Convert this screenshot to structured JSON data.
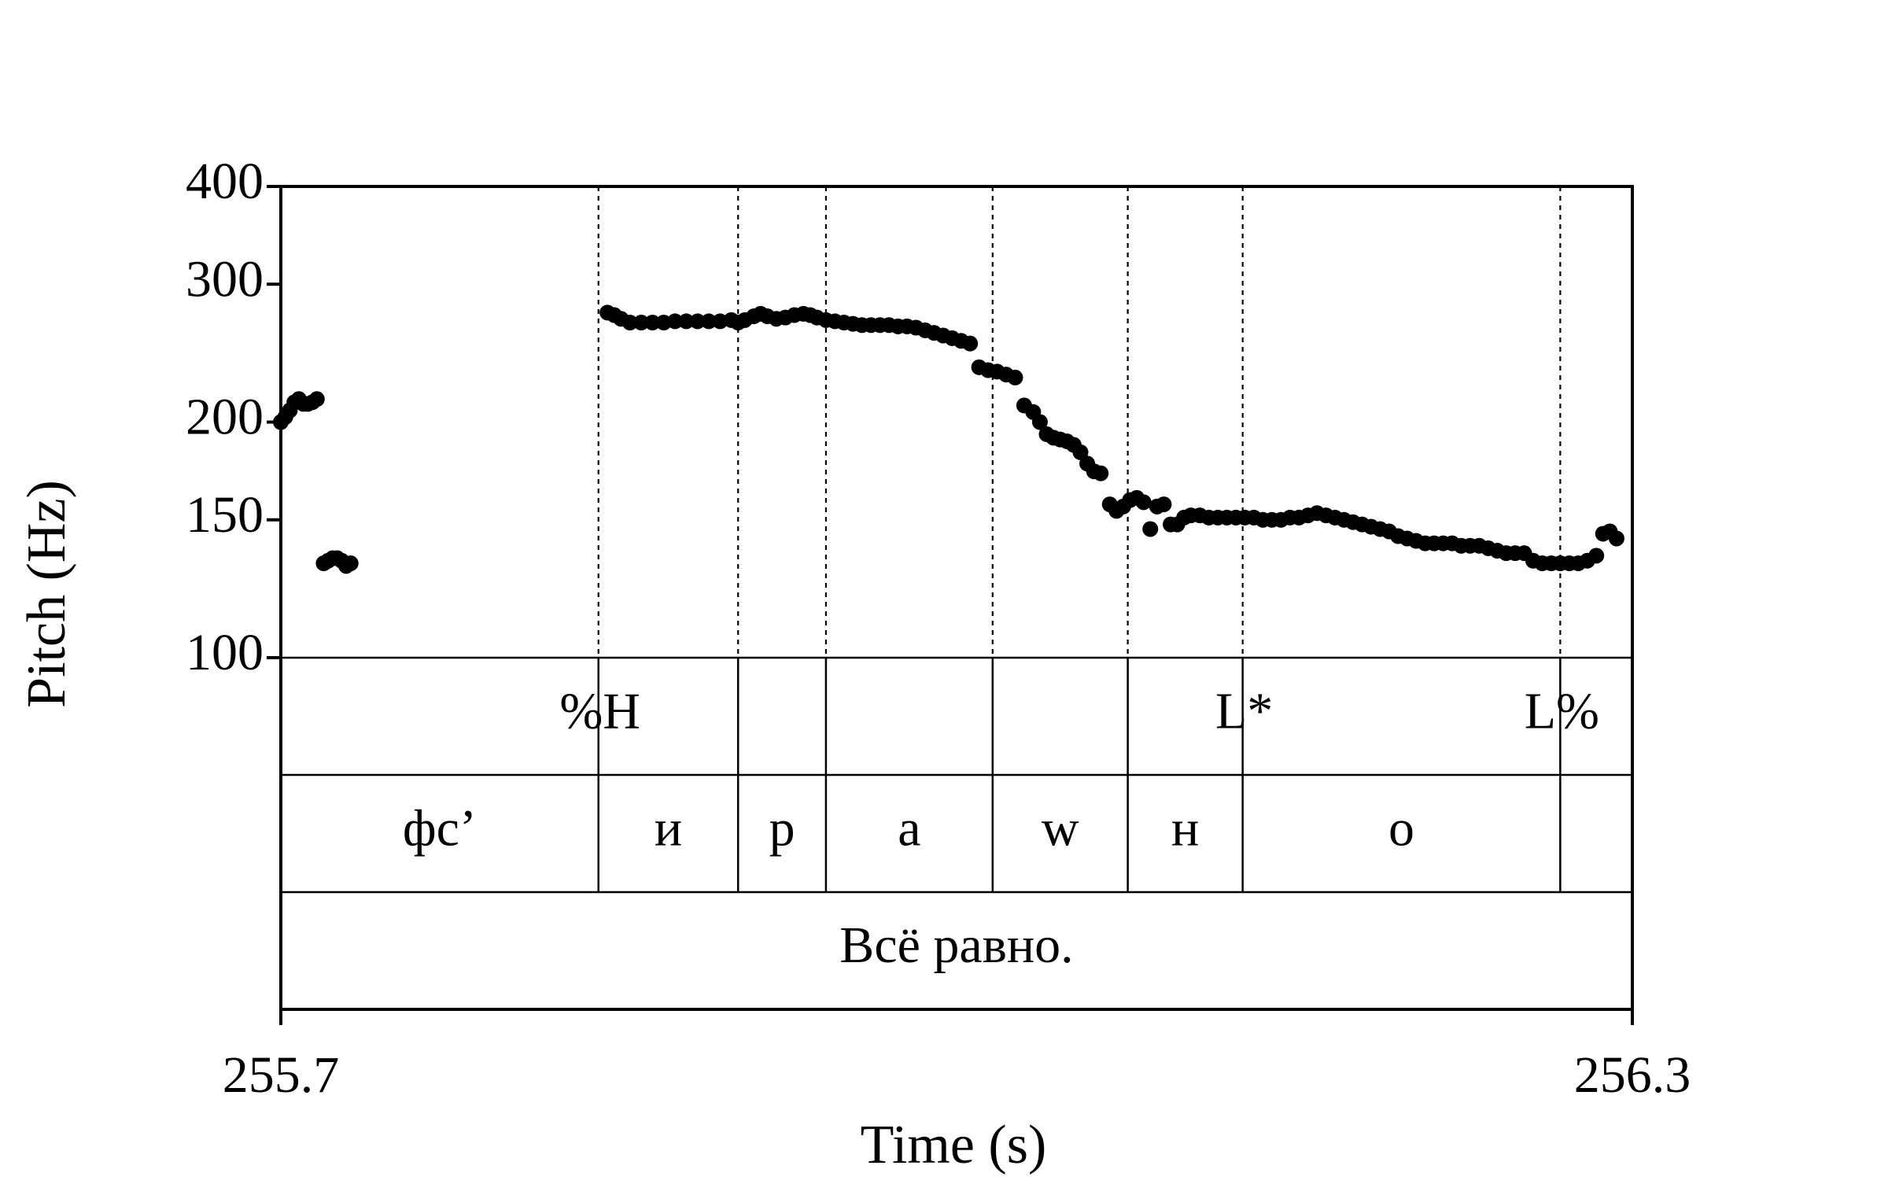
{
  "chart_data": {
    "type": "scatter",
    "xlabel": "Time (s)",
    "ylabel": "Pitch (Hz)",
    "xlim": [
      255.7,
      256.3
    ],
    "ylim": [
      100,
      400
    ],
    "y_scale": "log",
    "xticks": [
      "255.7",
      "256.3"
    ],
    "yticks": [
      {
        "value": 100,
        "label": "100"
      },
      {
        "value": 150,
        "label": "150"
      },
      {
        "value": 200,
        "label": "200"
      },
      {
        "value": 300,
        "label": "300"
      },
      {
        "value": 400,
        "label": "400"
      }
    ],
    "boundaries": [
      255.841,
      255.903,
      255.942,
      256.016,
      256.076,
      256.127,
      256.268
    ],
    "tones": [
      {
        "time": 255.841,
        "label": "%H"
      },
      {
        "time": 256.127,
        "label": "L*"
      },
      {
        "time": 256.268,
        "label": "L%"
      }
    ],
    "segments": [
      {
        "start": 255.7,
        "end": 255.841,
        "label": "фс’"
      },
      {
        "start": 255.841,
        "end": 255.903,
        "label": "и"
      },
      {
        "start": 255.903,
        "end": 255.942,
        "label": "р"
      },
      {
        "start": 255.942,
        "end": 256.016,
        "label": "а"
      },
      {
        "start": 256.016,
        "end": 256.076,
        "label": "w"
      },
      {
        "start": 256.076,
        "end": 256.127,
        "label": "н"
      },
      {
        "start": 256.127,
        "end": 256.268,
        "label": "о"
      },
      {
        "start": 256.268,
        "end": 256.3,
        "label": ""
      }
    ],
    "sentence": {
      "start": 255.7,
      "end": 256.3,
      "label": "Всё равно."
    },
    "series": [
      {
        "values": [
          [
            255.7,
            200
          ],
          [
            255.702,
            203
          ],
          [
            255.704,
            207
          ],
          [
            255.706,
            212
          ],
          [
            255.708,
            214
          ],
          [
            255.71,
            211
          ],
          [
            255.712,
            211
          ],
          [
            255.714,
            212
          ],
          [
            255.716,
            214
          ],
          [
            255.719,
            132
          ],
          [
            255.721,
            133
          ],
          [
            255.723,
            134
          ],
          [
            255.725,
            134
          ],
          [
            255.727,
            133
          ],
          [
            255.729,
            131
          ],
          [
            255.731,
            132
          ],
          [
            255.845,
            276
          ],
          [
            255.848,
            274
          ],
          [
            255.851,
            271
          ],
          [
            255.855,
            268
          ],
          [
            255.86,
            268
          ],
          [
            255.865,
            268
          ],
          [
            255.87,
            268
          ],
          [
            255.875,
            269
          ],
          [
            255.88,
            269
          ],
          [
            255.885,
            269
          ],
          [
            255.89,
            269
          ],
          [
            255.895,
            269
          ],
          [
            255.9,
            270
          ],
          [
            255.903,
            268
          ],
          [
            255.906,
            270
          ],
          [
            255.91,
            273
          ],
          [
            255.913,
            275
          ],
          [
            255.916,
            273
          ],
          [
            255.92,
            271
          ],
          [
            255.924,
            272
          ],
          [
            255.928,
            274
          ],
          [
            255.932,
            275
          ],
          [
            255.935,
            274
          ],
          [
            255.938,
            272
          ],
          [
            255.942,
            270
          ],
          [
            255.946,
            269
          ],
          [
            255.95,
            268
          ],
          [
            255.954,
            267
          ],
          [
            255.958,
            266
          ],
          [
            255.962,
            266
          ],
          [
            255.966,
            266
          ],
          [
            255.97,
            266
          ],
          [
            255.974,
            265
          ],
          [
            255.978,
            265
          ],
          [
            255.982,
            264
          ],
          [
            255.986,
            262
          ],
          [
            255.99,
            260
          ],
          [
            255.994,
            258
          ],
          [
            255.998,
            256
          ],
          [
            256.002,
            254
          ],
          [
            256.006,
            252
          ],
          [
            256.01,
            235
          ],
          [
            256.014,
            233
          ],
          [
            256.018,
            232
          ],
          [
            256.022,
            230
          ],
          [
            256.026,
            228
          ],
          [
            256.03,
            210
          ],
          [
            256.034,
            206
          ],
          [
            256.037,
            200
          ],
          [
            256.04,
            193
          ],
          [
            256.043,
            191
          ],
          [
            256.046,
            190
          ],
          [
            256.049,
            189
          ],
          [
            256.052,
            187
          ],
          [
            256.055,
            183
          ],
          [
            256.058,
            177
          ],
          [
            256.061,
            173
          ],
          [
            256.064,
            172
          ],
          [
            256.068,
            157
          ],
          [
            256.071,
            154
          ],
          [
            256.074,
            156
          ],
          [
            256.077,
            159
          ],
          [
            256.08,
            160
          ],
          [
            256.083,
            158
          ],
          [
            256.086,
            146
          ],
          [
            256.089,
            156
          ],
          [
            256.092,
            157
          ],
          [
            256.095,
            148
          ],
          [
            256.098,
            148
          ],
          [
            256.101,
            151
          ],
          [
            256.104,
            152
          ],
          [
            256.108,
            152
          ],
          [
            256.112,
            151
          ],
          [
            256.116,
            151
          ],
          [
            256.12,
            151
          ],
          [
            256.124,
            151
          ],
          [
            256.128,
            151
          ],
          [
            256.132,
            151
          ],
          [
            256.136,
            150
          ],
          [
            256.14,
            150
          ],
          [
            256.144,
            150
          ],
          [
            256.148,
            151
          ],
          [
            256.152,
            151
          ],
          [
            256.156,
            152
          ],
          [
            256.16,
            153
          ],
          [
            256.164,
            152
          ],
          [
            256.168,
            151
          ],
          [
            256.172,
            150
          ],
          [
            256.176,
            149
          ],
          [
            256.18,
            148
          ],
          [
            256.184,
            147
          ],
          [
            256.188,
            146
          ],
          [
            256.192,
            145
          ],
          [
            256.196,
            143
          ],
          [
            256.2,
            142
          ],
          [
            256.204,
            141
          ],
          [
            256.208,
            140
          ],
          [
            256.212,
            140
          ],
          [
            256.216,
            140
          ],
          [
            256.22,
            140
          ],
          [
            256.224,
            139
          ],
          [
            256.228,
            139
          ],
          [
            256.232,
            139
          ],
          [
            256.236,
            138
          ],
          [
            256.24,
            137
          ],
          [
            256.244,
            136
          ],
          [
            256.248,
            136
          ],
          [
            256.252,
            136
          ],
          [
            256.256,
            133
          ],
          [
            256.26,
            132
          ],
          [
            256.264,
            132
          ],
          [
            256.268,
            132
          ],
          [
            256.272,
            132
          ],
          [
            256.276,
            132
          ],
          [
            256.28,
            133
          ],
          [
            256.284,
            135
          ],
          [
            256.287,
            144
          ],
          [
            256.29,
            145
          ],
          [
            256.293,
            142
          ]
        ]
      }
    ]
  }
}
